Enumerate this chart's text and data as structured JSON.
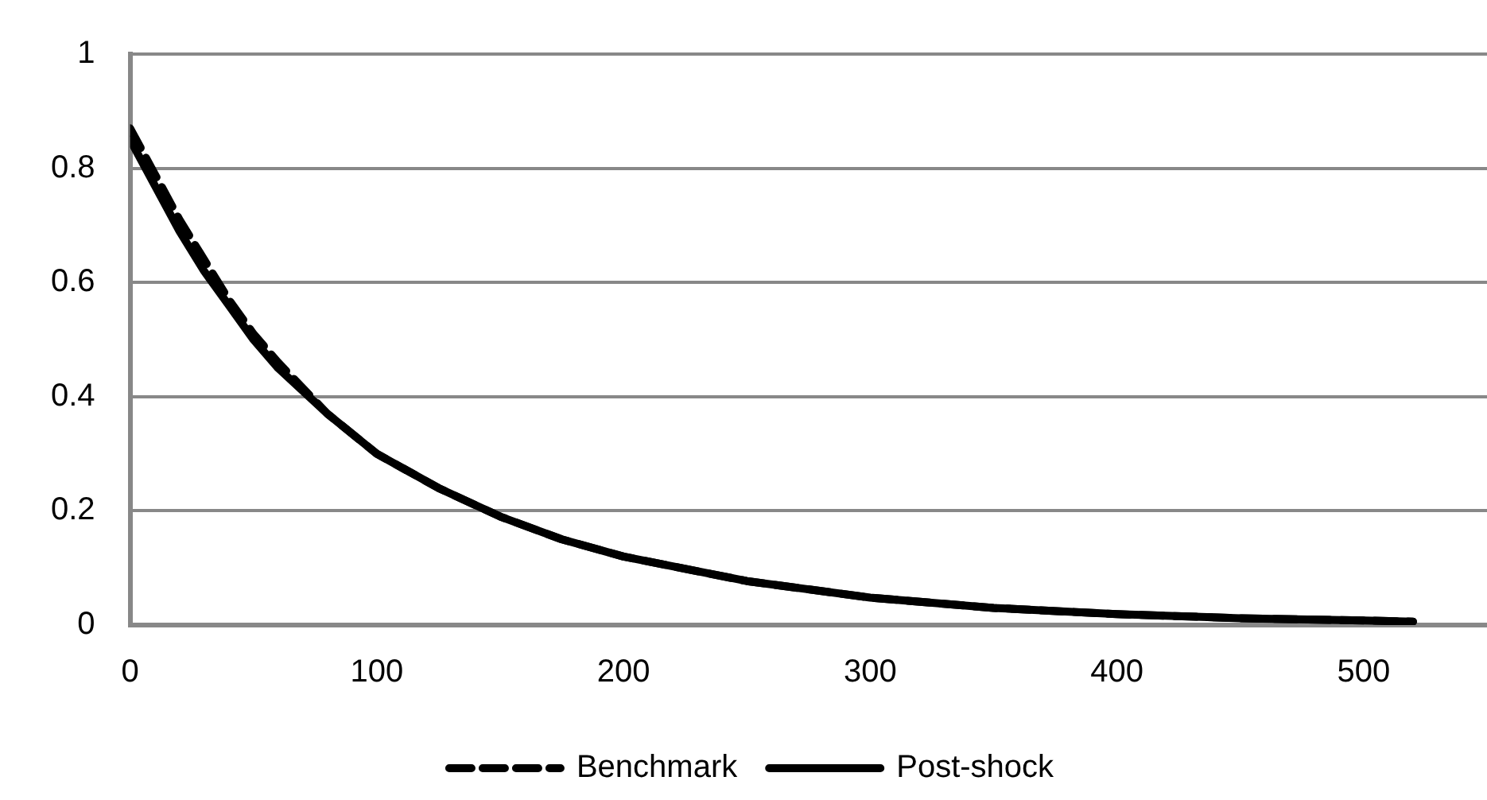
{
  "chart_data": {
    "type": "line",
    "x": [
      0,
      10,
      20,
      30,
      40,
      50,
      60,
      80,
      100,
      125,
      150,
      175,
      200,
      250,
      300,
      350,
      400,
      450,
      500,
      520
    ],
    "series": [
      {
        "name": "Benchmark",
        "color": "#000000",
        "line_style": "dashed",
        "values": [
          0.87,
          0.79,
          0.71,
          0.64,
          0.57,
          0.51,
          0.46,
          0.37,
          0.3,
          0.24,
          0.19,
          0.15,
          0.12,
          0.077,
          0.048,
          0.03,
          0.019,
          0.012,
          0.008,
          0.006
        ]
      },
      {
        "name": "Post-shock",
        "color": "#000000",
        "line_style": "solid",
        "values": [
          0.85,
          0.77,
          0.69,
          0.62,
          0.56,
          0.5,
          0.45,
          0.37,
          0.3,
          0.24,
          0.19,
          0.15,
          0.12,
          0.077,
          0.048,
          0.03,
          0.019,
          0.012,
          0.008,
          0.006
        ]
      }
    ],
    "xlim": [
      0,
      550
    ],
    "xticks": [
      0,
      100,
      200,
      300,
      400,
      500
    ],
    "ylim": [
      0,
      1
    ],
    "yticks": [
      0,
      0.2,
      0.4,
      0.6,
      0.8,
      1
    ],
    "grid": "y",
    "legend": "bottom",
    "marker": "none"
  }
}
